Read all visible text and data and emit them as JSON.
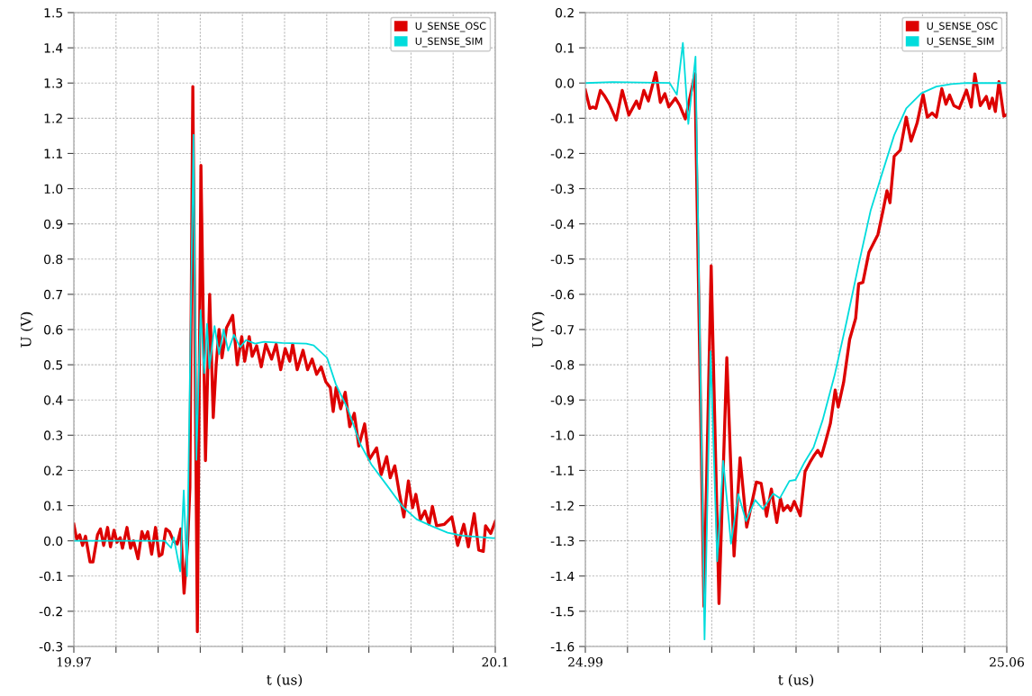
{
  "chart_data": [
    {
      "type": "line",
      "xlabel": "t (us)",
      "ylabel": "U (V)",
      "grid": true,
      "legend": "top right",
      "tick_labels": "xy",
      "xlim": [
        19.97,
        20.1
      ],
      "xticks": [
        19.97,
        {
          "value": 19.983,
          "label": null
        },
        {
          "value": 19.996,
          "label": null
        },
        {
          "value": 20.009,
          "label": null
        },
        {
          "value": 20.022,
          "label": null
        },
        {
          "value": 20.035,
          "label": null
        },
        {
          "value": 20.048,
          "label": null
        },
        {
          "value": 20.061,
          "label": null
        },
        {
          "value": 20.074,
          "label": null
        },
        {
          "value": 20.087,
          "label": null
        },
        20.1
      ],
      "ylim": [
        -0.3,
        1.5
      ],
      "yticks": [
        -0.3,
        -0.2,
        -0.1,
        {
          "value": 0,
          "label": "0.0"
        },
        0.1,
        0.2,
        0.3,
        0.4,
        0.5,
        0.6,
        0.7,
        0.8,
        0.9,
        {
          "value": 1,
          "label": "1.0"
        },
        1.1,
        1.2,
        1.3,
        1.4,
        1.5
      ],
      "series": [
        {
          "name": "U_SENSE_OSC",
          "color": "#dd0000",
          "x": [
            19.97,
            19.9709,
            19.9718,
            19.9727,
            19.9736,
            19.975,
            19.9759,
            19.9773,
            19.9782,
            19.9792,
            19.9804,
            19.9813,
            19.9824,
            19.9833,
            19.9843,
            19.985,
            19.9864,
            19.9875,
            19.9884,
            19.9898,
            19.991,
            19.9919,
            19.9928,
            19.994,
            19.9952,
            19.9963,
            19.9972,
            19.9984,
            19.9995,
            20.0007,
            20.0019,
            20.003,
            20.004,
            20.0051,
            20.0058,
            20.0067,
            20.0081,
            20.0092,
            20.0106,
            20.0119,
            20.013,
            20.0139,
            20.0148,
            20.0157,
            20.0171,
            20.019,
            20.0204,
            20.0218,
            20.0227,
            20.0241,
            20.025,
            20.0264,
            20.0278,
            20.0292,
            20.031,
            20.0324,
            20.0338,
            20.0352,
            20.0366,
            20.0375,
            20.0389,
            20.0407,
            20.0421,
            20.0435,
            20.0449,
            20.0463,
            20.0477,
            20.0491,
            20.05,
            20.0509,
            20.0523,
            20.0537,
            20.0551,
            20.0565,
            20.0579,
            20.0597,
            20.0611,
            20.0634,
            20.0648,
            20.0665,
            20.0676,
            20.069,
            20.0704,
            20.0718,
            20.0732,
            20.0745,
            20.0755,
            20.0769,
            20.0783,
            20.0796,
            20.0806,
            20.0819,
            20.0843,
            20.0866,
            20.0884,
            20.0903,
            20.0917,
            20.0935,
            20.0949,
            20.0963,
            20.097,
            20.0986,
            20.1
          ],
          "values": [
            0.047,
            0.004,
            0.017,
            -0.013,
            0.013,
            -0.06,
            -0.06,
            0.017,
            0.034,
            -0.013,
            0.038,
            -0.017,
            0.03,
            -0.004,
            0.009,
            -0.021,
            0.038,
            -0.021,
            0.0,
            -0.051,
            0.026,
            0.004,
            0.026,
            -0.038,
            0.038,
            -0.043,
            -0.038,
            0.034,
            0.026,
            0.0,
            -0.009,
            0.034,
            -0.149,
            -0.009,
            0.153,
            1.29,
            -0.258,
            1.066,
            0.228,
            0.7,
            0.35,
            0.5,
            0.6,
            0.52,
            0.605,
            0.64,
            0.5,
            0.58,
            0.51,
            0.58,
            0.524,
            0.554,
            0.494,
            0.558,
            0.516,
            0.558,
            0.486,
            0.546,
            0.51,
            0.558,
            0.486,
            0.541,
            0.486,
            0.516,
            0.473,
            0.494,
            0.452,
            0.435,
            0.367,
            0.435,
            0.375,
            0.422,
            0.324,
            0.362,
            0.269,
            0.332,
            0.23,
            0.264,
            0.188,
            0.239,
            0.179,
            0.213,
            0.136,
            0.068,
            0.17,
            0.094,
            0.132,
            0.06,
            0.085,
            0.047,
            0.098,
            0.043,
            0.047,
            0.068,
            -0.013,
            0.047,
            -0.017,
            0.077,
            -0.026,
            -0.03,
            0.043,
            0.021,
            0.055
          ]
        },
        {
          "name": "U_SENSE_SIM",
          "color": "#00dcdc",
          "x": [
            19.97,
            19.98,
            19.99,
            19.998,
            20.0,
            20.0008,
            20.0028,
            20.0039,
            20.0049,
            20.0069,
            20.0078,
            20.0091,
            20.0102,
            20.0111,
            20.0118,
            20.0134,
            20.0148,
            20.0162,
            20.0176,
            20.0194,
            20.0213,
            20.0231,
            20.0259,
            20.0287,
            20.0343,
            20.0417,
            20.044,
            20.0481,
            20.0508,
            20.0547,
            20.0583,
            20.0619,
            20.0667,
            20.0714,
            20.0758,
            20.0806,
            20.0853,
            20.0897,
            20.0992,
            20.1
          ],
          "values": [
            0.0,
            0.0,
            0.0,
            0.0,
            -0.02,
            0.01,
            -0.087,
            0.143,
            -0.1,
            1.153,
            0.23,
            0.655,
            0.476,
            0.616,
            0.49,
            0.61,
            0.53,
            0.6,
            0.54,
            0.585,
            0.55,
            0.57,
            0.56,
            0.565,
            0.562,
            0.56,
            0.555,
            0.52,
            0.445,
            0.37,
            0.276,
            0.215,
            0.156,
            0.097,
            0.061,
            0.041,
            0.023,
            0.015,
            0.008,
            0.008
          ]
        }
      ]
    },
    {
      "type": "line",
      "xlabel": "t (us)",
      "ylabel": "U (V)",
      "grid": true,
      "legend": "top right",
      "tick_labels": "xy",
      "xlim": [
        24.99,
        25.06
      ],
      "xticks": [
        24.99,
        {
          "value": 24.997,
          "label": null
        },
        {
          "value": 25.004,
          "label": null
        },
        {
          "value": 25.011,
          "label": null
        },
        {
          "value": 25.018,
          "label": null
        },
        {
          "value": 25.025,
          "label": null
        },
        {
          "value": 25.032,
          "label": null
        },
        {
          "value": 25.039,
          "label": null
        },
        {
          "value": 25.046,
          "label": null
        },
        {
          "value": 25.053,
          "label": null
        },
        25.06
      ],
      "ylim": [
        -1.6,
        0.2
      ],
      "yticks": [
        -1.6,
        -1.5,
        -1.4,
        -1.3,
        -1.2,
        -1.1,
        {
          "value": -1,
          "label": "-1.0"
        },
        -0.9,
        -0.8,
        -0.7,
        -0.6,
        -0.5,
        -0.4,
        -0.3,
        -0.2,
        -0.1,
        {
          "value": 0,
          "label": "0.0"
        },
        0.1,
        0.2
      ],
      "series": [
        {
          "name": "U_SENSE_OSC",
          "color": "#dd0000",
          "x": [
            24.99,
            24.99075,
            24.99125,
            24.99175,
            24.9925,
            24.99324,
            24.99399,
            24.99513,
            24.99613,
            24.99723,
            24.99848,
            24.99897,
            24.99972,
            25.00047,
            25.00171,
            25.00246,
            25.00321,
            25.00386,
            25.00496,
            25.0057,
            25.0066,
            25.0072,
            25.0082,
            25.0097,
            25.0109,
            25.0122,
            25.0135,
            25.0147,
            25.0157,
            25.0168,
            25.0184,
            25.0192,
            25.0201,
            25.0209,
            25.0218,
            25.0224,
            25.0229,
            25.0236,
            25.0241,
            25.0247,
            25.0257,
            25.0265,
            25.0273,
            25.0279,
            25.0286,
            25.0292,
            25.0299,
            25.0307,
            25.0315,
            25.032,
            25.0329,
            25.0339,
            25.0349,
            25.0354,
            25.0361,
            25.0371,
            25.0386,
            25.0394,
            25.0401,
            25.0406,
            25.0413,
            25.0423,
            25.0433,
            25.0441,
            25.0451,
            25.0461,
            25.0468,
            25.0476,
            25.0483,
            25.0492,
            25.0499,
            25.0505,
            25.0512,
            25.0521,
            25.0533,
            25.0541,
            25.0547,
            25.0556,
            25.0566,
            25.0571,
            25.0576,
            25.0581,
            25.0587,
            25.0595,
            25.06
          ],
          "values": [
            -0.02,
            -0.072,
            -0.068,
            -0.072,
            -0.021,
            -0.038,
            -0.06,
            -0.105,
            -0.021,
            -0.091,
            -0.051,
            -0.072,
            -0.021,
            -0.051,
            0.03,
            -0.055,
            -0.03,
            -0.068,
            -0.043,
            -0.064,
            -0.102,
            -0.055,
            0.026,
            -1.486,
            -0.519,
            -1.478,
            -0.78,
            -1.343,
            -1.064,
            -1.261,
            -1.133,
            -1.137,
            -1.23,
            -1.153,
            -1.248,
            -1.18,
            -1.214,
            -1.2,
            -1.214,
            -1.188,
            -1.229,
            -1.103,
            -1.077,
            -1.06,
            -1.043,
            -1.06,
            -1.018,
            -0.967,
            -0.872,
            -0.92,
            -0.85,
            -0.728,
            -0.668,
            -0.57,
            -0.566,
            -0.481,
            -0.43,
            -0.366,
            -0.306,
            -0.34,
            -0.208,
            -0.191,
            -0.097,
            -0.165,
            -0.114,
            -0.033,
            -0.097,
            -0.085,
            -0.097,
            -0.016,
            -0.06,
            -0.034,
            -0.064,
            -0.072,
            -0.02,
            -0.068,
            0.026,
            -0.064,
            -0.038,
            -0.072,
            -0.043,
            -0.081,
            0.004,
            -0.094,
            -0.09
          ]
        },
        {
          "name": "U_SENSE_SIM",
          "color": "#00dcdc",
          "x": [
            24.99,
            24.9945,
            25.004,
            25.0052,
            25.0062,
            25.0071,
            25.0083,
            25.0098,
            25.0108,
            25.0119,
            25.0129,
            25.0142,
            25.0154,
            25.0167,
            25.0182,
            25.0195,
            25.0212,
            25.0223,
            25.0239,
            25.0249,
            25.0264,
            25.0279,
            25.0294,
            25.0314,
            25.0334,
            25.0354,
            25.0374,
            25.0394,
            25.0413,
            25.0433,
            25.0458,
            25.0483,
            25.0508,
            25.0533,
            25.06
          ],
          "values": [
            0.0,
            0.003,
            0.0,
            -0.033,
            0.114,
            -0.116,
            0.075,
            -1.58,
            -0.762,
            -1.358,
            -1.073,
            -1.308,
            -1.167,
            -1.244,
            -1.184,
            -1.21,
            -1.166,
            -1.179,
            -1.13,
            -1.127,
            -1.077,
            -1.035,
            -0.958,
            -0.83,
            -0.677,
            -0.515,
            -0.361,
            -0.251,
            -0.148,
            -0.072,
            -0.029,
            -0.01,
            -0.003,
            0.0,
            0.0
          ]
        }
      ]
    }
  ]
}
